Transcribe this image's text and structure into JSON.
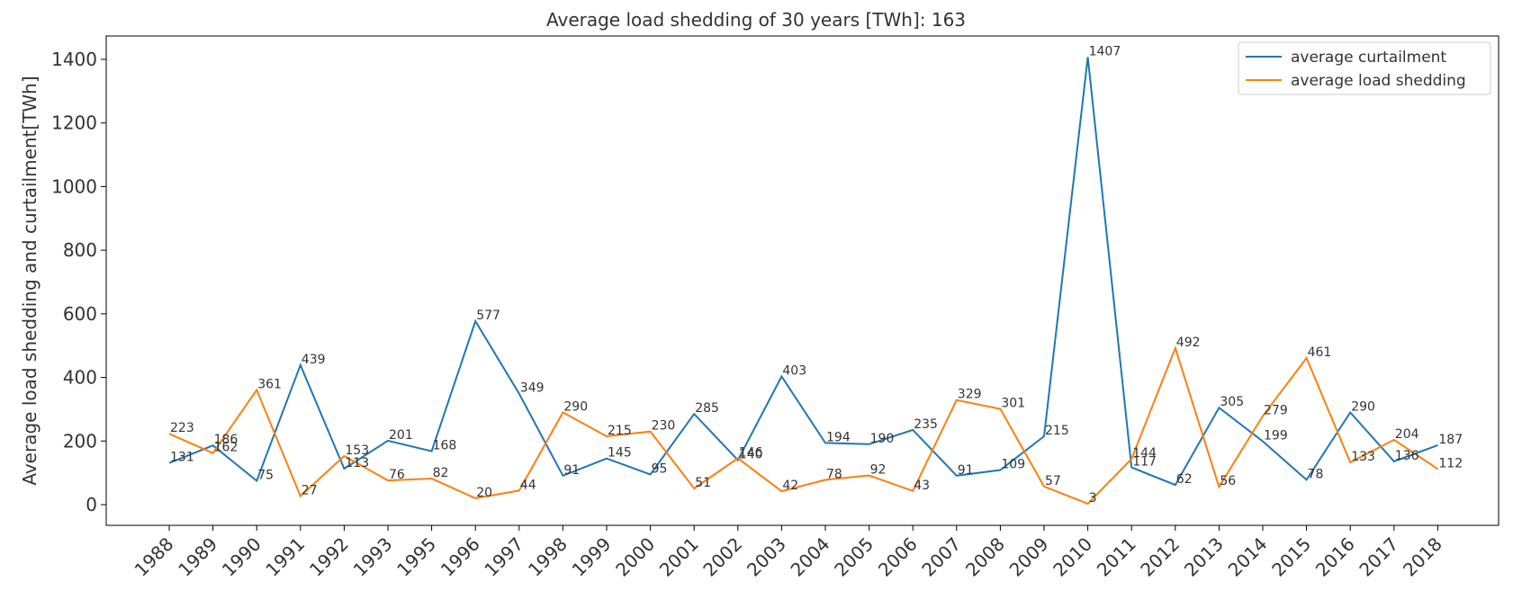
{
  "chart_data": {
    "type": "line",
    "title": "Average load shedding of 30 years [TWh]: 163",
    "xlabel": "",
    "ylabel": "Average load shedding and curtailment[TWh]",
    "ylim": [
      -70,
      1470
    ],
    "yticks": [
      0,
      200,
      400,
      600,
      800,
      1000,
      1200,
      1400
    ],
    "grid": false,
    "legend_position": "top-right",
    "categories": [
      "1988",
      "1989",
      "1990",
      "1991",
      "1992",
      "1993",
      "1995",
      "1996",
      "1997",
      "1998",
      "1999",
      "2000",
      "2001",
      "2002",
      "2003",
      "2004",
      "2005",
      "2006",
      "2007",
      "2008",
      "2009",
      "2010",
      "2011",
      "2012",
      "2013",
      "2014",
      "2015",
      "2016",
      "2017",
      "2018"
    ],
    "series": [
      {
        "name": "average curtailment",
        "color": "#1f77b4",
        "values": [
          131,
          186,
          75,
          439,
          113,
          201,
          168,
          577,
          349,
          91,
          145,
          95,
          285,
          140,
          403,
          194,
          190,
          235,
          91,
          109,
          215,
          1407,
          117,
          62,
          305,
          199,
          78,
          290,
          136,
          187
        ]
      },
      {
        "name": "average load shedding",
        "color": "#ff7f0e",
        "values": [
          223,
          162,
          361,
          27,
          153,
          76,
          82,
          20,
          44,
          290,
          215,
          230,
          51,
          146,
          42,
          78,
          92,
          43,
          329,
          301,
          57,
          3,
          144,
          492,
          56,
          279,
          461,
          133,
          204,
          112
        ]
      }
    ]
  }
}
